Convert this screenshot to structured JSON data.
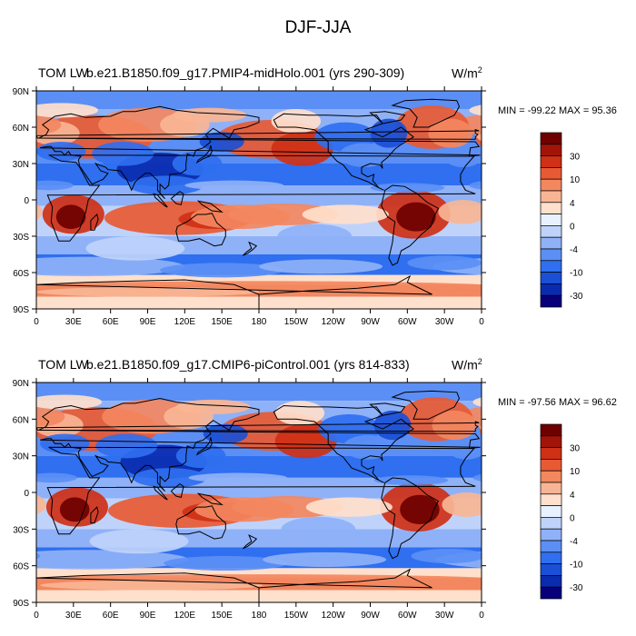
{
  "figure": {
    "title": "DJF-JJA",
    "colors": [
      "#08007a",
      "#0a2bb0",
      "#1a4fd6",
      "#2f6ff0",
      "#5b8ff5",
      "#8fb1f7",
      "#bfd3fa",
      "#e8f1ff",
      "#ffe0cc",
      "#f8b595",
      "#f3875f",
      "#e85a33",
      "#cf3016",
      "#a31408",
      "#6e0000"
    ]
  },
  "panels": [
    {
      "left_title": "TOM LW",
      "case_title": "b.e21.B1850.f09_g17.PMIP4-midHolo.001 (yrs 290-309)",
      "units": "W/m",
      "units_sup": "2",
      "min_max": "MIN = -99.22 MAX =  95.36"
    },
    {
      "left_title": "TOM LW",
      "case_title": "b.e21.B1850.f09_g17.CMIP6-piControl.001 (yrs 814-833)",
      "units": "W/m",
      "units_sup": "2",
      "min_max": "MIN = -97.56 MAX =  96.62"
    }
  ],
  "axes": {
    "lat_labels": [
      "90N",
      "60N",
      "30N",
      "0",
      "30S",
      "60S",
      "90S"
    ],
    "lon_labels": [
      "0",
      "30E",
      "60E",
      "90E",
      "120E",
      "150E",
      "180",
      "150W",
      "120W",
      "90W",
      "60W",
      "30W",
      "0"
    ]
  },
  "colorbar": {
    "labels": [
      "30",
      "10",
      "4",
      "0",
      "-4",
      "-10",
      "-30"
    ]
  }
}
